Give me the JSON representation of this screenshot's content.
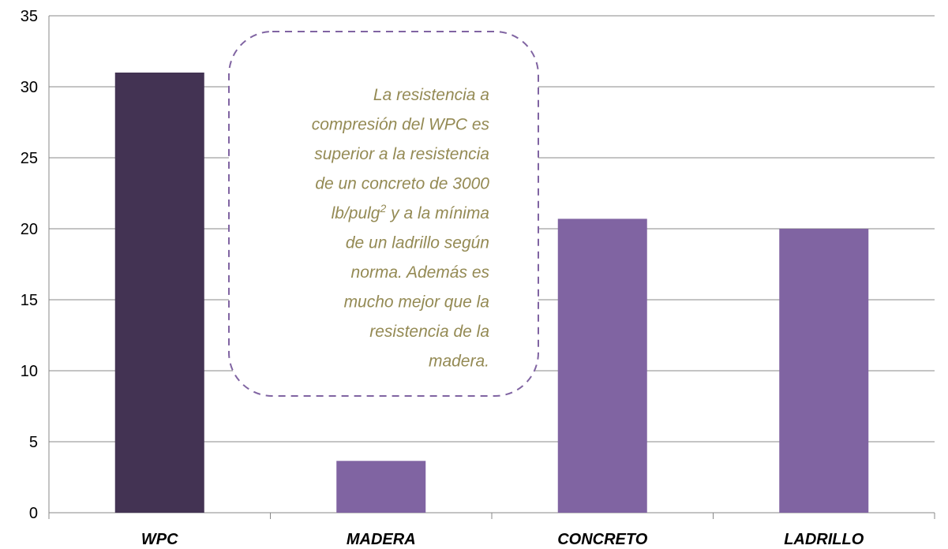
{
  "chart_data": {
    "type": "bar",
    "categories": [
      "WPC",
      "MADERA",
      "CONCRETO",
      "LADRILLO"
    ],
    "values": [
      31,
      3.65,
      20.7,
      20
    ],
    "colors": [
      "#433353",
      "#8064a2",
      "#8064a2",
      "#8064a2"
    ],
    "ylim": [
      0,
      35
    ],
    "yticks": [
      0,
      5,
      10,
      15,
      20,
      25,
      30,
      35
    ],
    "grid": true,
    "annotation": {
      "lines": [
        "La resistencia a",
        "compresión del WPC es",
        "superior a la resistencia",
        "de un concreto de 3000",
        {
          "text": "lb/pulg",
          "superscript": "2",
          "rest": " y a la mínima"
        },
        "de un ladrillo según",
        "norma. Además es",
        "mucho mejor que la",
        "resistencia de la",
        "madera."
      ]
    }
  }
}
